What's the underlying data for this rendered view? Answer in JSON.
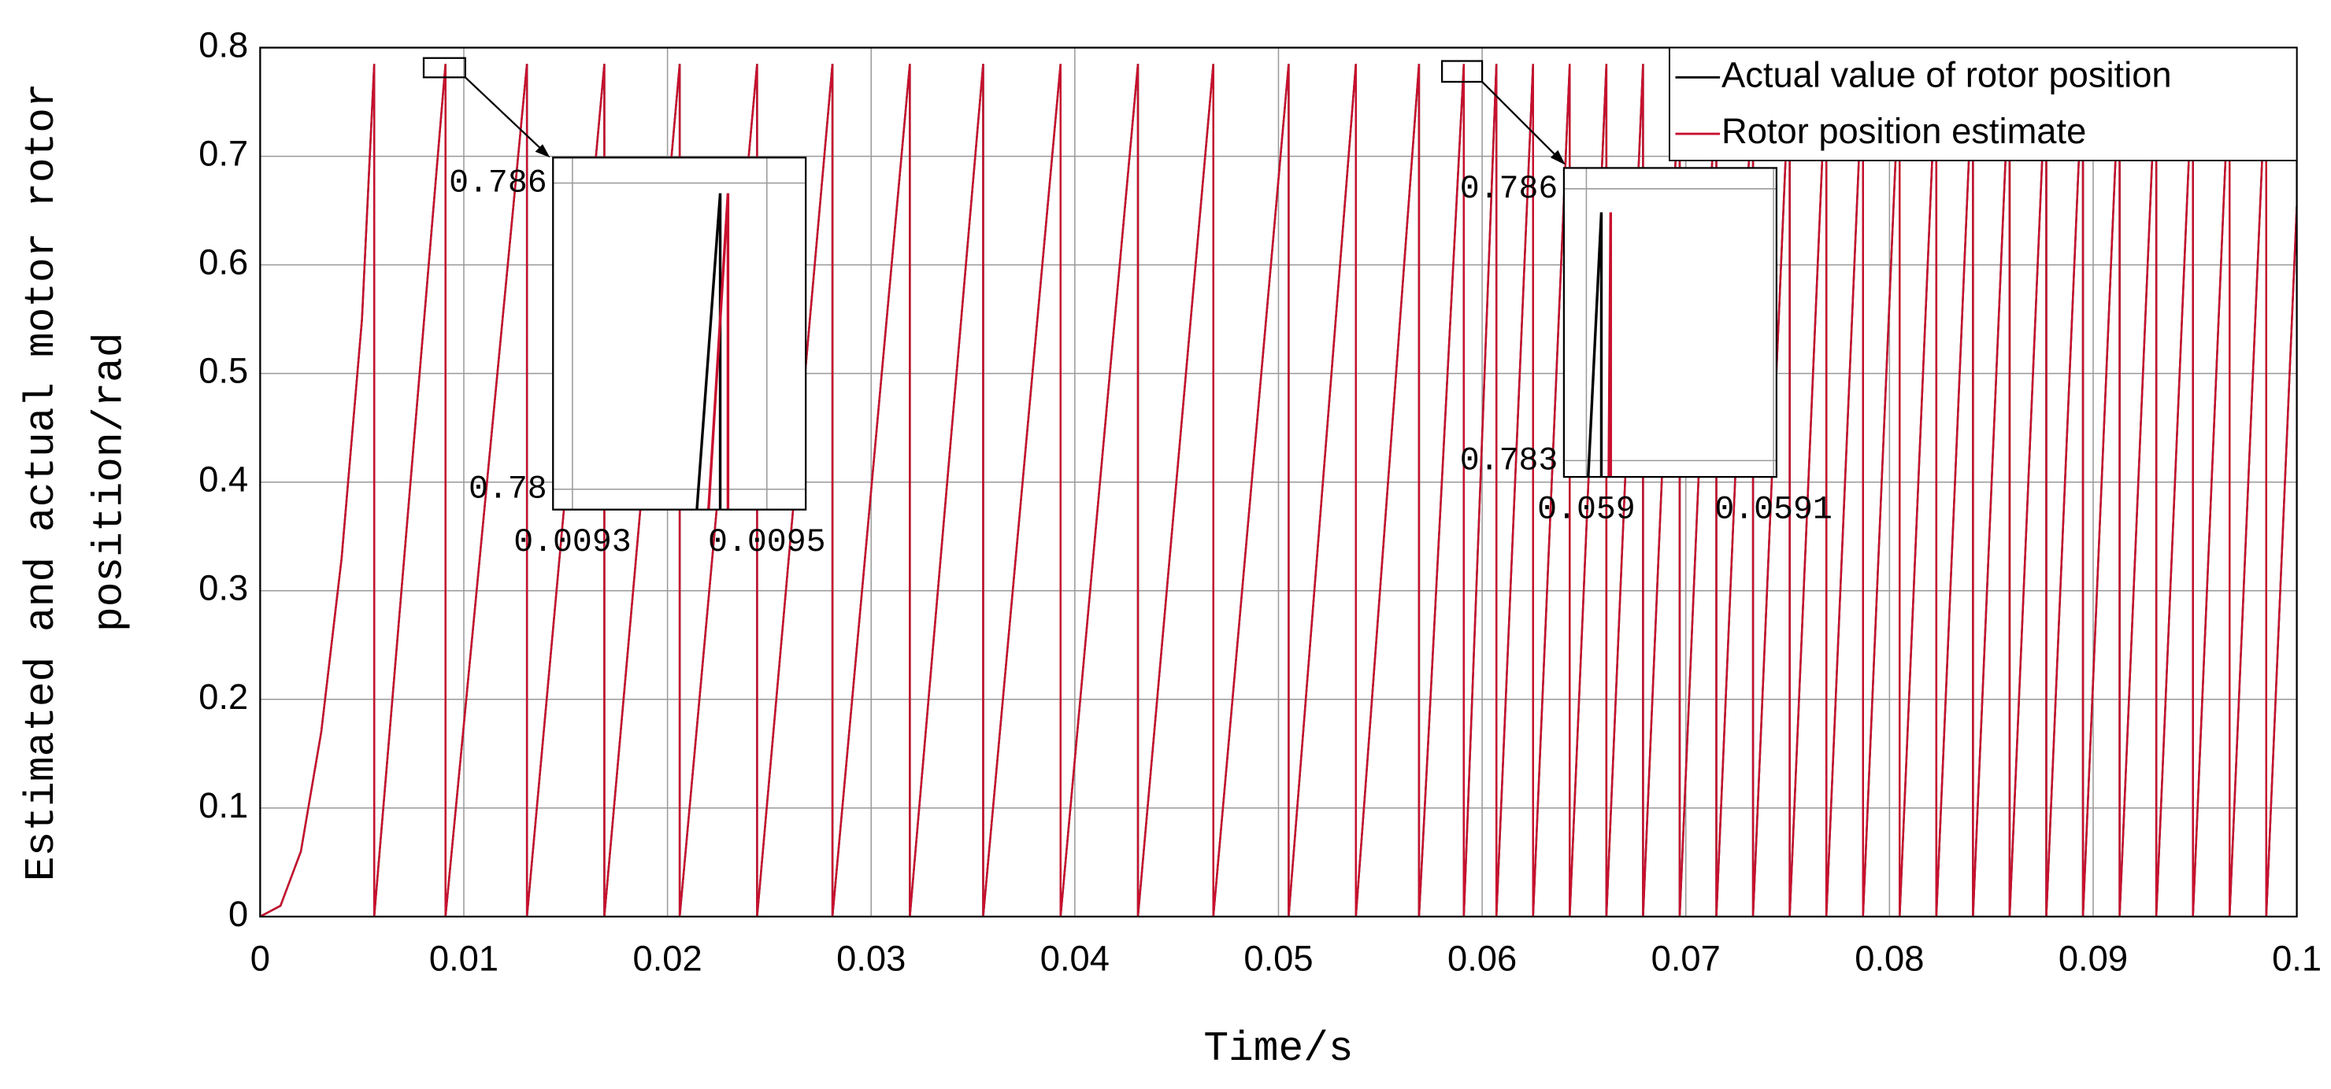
{
  "chart_data": [
    {
      "type": "line",
      "xlabel": "Time/s",
      "ylabel": [
        "Estimated and actual motor rotor",
        "position/rad"
      ],
      "xlim": [
        0,
        0.1
      ],
      "ylim": [
        0,
        0.8
      ],
      "xticks": [
        0,
        0.01,
        0.02,
        0.03,
        0.04,
        0.05,
        0.06,
        0.07,
        0.08,
        0.09,
        0.1
      ],
      "yticks": [
        0,
        0.1,
        0.2,
        0.3,
        0.4,
        0.5,
        0.6,
        0.7,
        0.8
      ],
      "grid": true,
      "legend": "upper right",
      "x": [
        0,
        0.001,
        0.002,
        0.003,
        0.004,
        0.005,
        0.0056,
        0.0056,
        0.0091,
        0.0091,
        0.0131,
        0.0131,
        0.0169,
        0.0169,
        0.0206,
        0.0206,
        0.0244,
        0.0244,
        0.0281,
        0.0281,
        0.0319,
        0.0319,
        0.0355,
        0.0355,
        0.0393,
        0.0393,
        0.0431,
        0.0431,
        0.0468,
        0.0468,
        0.0505,
        0.0505,
        0.0538,
        0.0538,
        0.0569,
        0.0569,
        0.0591,
        0.0591,
        0.0607,
        0.0607,
        0.0625,
        0.0625,
        0.0643,
        0.0643,
        0.0661,
        0.0661,
        0.0679,
        0.0679,
        0.0697,
        0.0697,
        0.0715,
        0.0715,
        0.0733,
        0.0733,
        0.0751,
        0.0751,
        0.0769,
        0.0769,
        0.0787,
        0.0787,
        0.0805,
        0.0805,
        0.0823,
        0.0823,
        0.0841,
        0.0841,
        0.0859,
        0.0859,
        0.0877,
        0.0877,
        0.0895,
        0.0895,
        0.0913,
        0.0913,
        0.0931,
        0.0931,
        0.0949,
        0.0949,
        0.0967,
        0.0967,
        0.0985,
        0.0985,
        0.1
      ],
      "series": [
        {
          "name": "Actual value of rotor position",
          "color": "#000000",
          "values": [
            0,
            0.01,
            0.06,
            0.17,
            0.33,
            0.55,
            0.785,
            0,
            0.785,
            0,
            0.785,
            0,
            0.785,
            0,
            0.785,
            0,
            0.785,
            0,
            0.785,
            0,
            0.785,
            0,
            0.785,
            0,
            0.785,
            0,
            0.785,
            0,
            0.785,
            0,
            0.785,
            0,
            0.785,
            0,
            0.785,
            0,
            0.785,
            0,
            0.785,
            0,
            0.785,
            0,
            0.785,
            0,
            0.785,
            0,
            0.785,
            0,
            0.785,
            0,
            0.785,
            0,
            0.785,
            0,
            0.785,
            0,
            0.785,
            0,
            0.785,
            0,
            0.785,
            0,
            0.785,
            0,
            0.785,
            0,
            0.785,
            0,
            0.785,
            0,
            0.785,
            0,
            0.785,
            0,
            0.785,
            0,
            0.785,
            0,
            0.785,
            0,
            0.785,
            0,
            0.654
          ]
        },
        {
          "name": "Rotor position estimate",
          "color": "#c8102e",
          "values": [
            0,
            0.01,
            0.06,
            0.17,
            0.33,
            0.55,
            0.785,
            0,
            0.785,
            0,
            0.785,
            0,
            0.785,
            0,
            0.785,
            0,
            0.785,
            0,
            0.785,
            0,
            0.785,
            0,
            0.785,
            0,
            0.785,
            0,
            0.785,
            0,
            0.785,
            0,
            0.785,
            0,
            0.785,
            0,
            0.785,
            0,
            0.785,
            0,
            0.785,
            0,
            0.785,
            0,
            0.785,
            0,
            0.785,
            0,
            0.785,
            0,
            0.785,
            0,
            0.785,
            0,
            0.785,
            0,
            0.785,
            0,
            0.785,
            0,
            0.785,
            0,
            0.785,
            0,
            0.785,
            0,
            0.785,
            0,
            0.785,
            0,
            0.785,
            0,
            0.785,
            0,
            0.785,
            0,
            0.785,
            0,
            0.785,
            0,
            0.785,
            0,
            0.785,
            0,
            0.654
          ]
        }
      ]
    },
    {
      "type": "line",
      "xlim": [
        0.00928,
        0.00954
      ],
      "ylim": [
        0.7796,
        0.7865
      ],
      "xticks": [
        0.0093,
        0.0095
      ],
      "yticks": [
        0.78,
        0.786
      ],
      "grid": true,
      "series": [
        {
          "color": "#000000",
          "x": [
            0.009428,
            0.009452,
            0.009452
          ],
          "values": [
            0.7796,
            0.7858,
            0.7796
          ]
        },
        {
          "color": "#c8102e",
          "x": [
            0.00944,
            0.00946,
            0.00946
          ],
          "values": [
            0.7796,
            0.7858,
            0.7796
          ]
        }
      ]
    },
    {
      "type": "line",
      "xlim": [
        0.058988,
        0.0591016
      ],
      "ylim": [
        0.78282,
        0.78623
      ],
      "xticks": [
        0.059,
        0.0591
      ],
      "yticks": [
        0.783,
        0.786
      ],
      "grid": true,
      "series": [
        {
          "color": "#000000",
          "x": [
            0.059001,
            0.059008,
            0.059008
          ],
          "values": [
            0.78282,
            0.78574,
            0.78282
          ]
        },
        {
          "color": "#c8102e",
          "x": [
            0.059012,
            0.059013,
            0.059013
          ],
          "values": [
            0.78282,
            0.78574,
            0.78282
          ]
        }
      ]
    }
  ]
}
